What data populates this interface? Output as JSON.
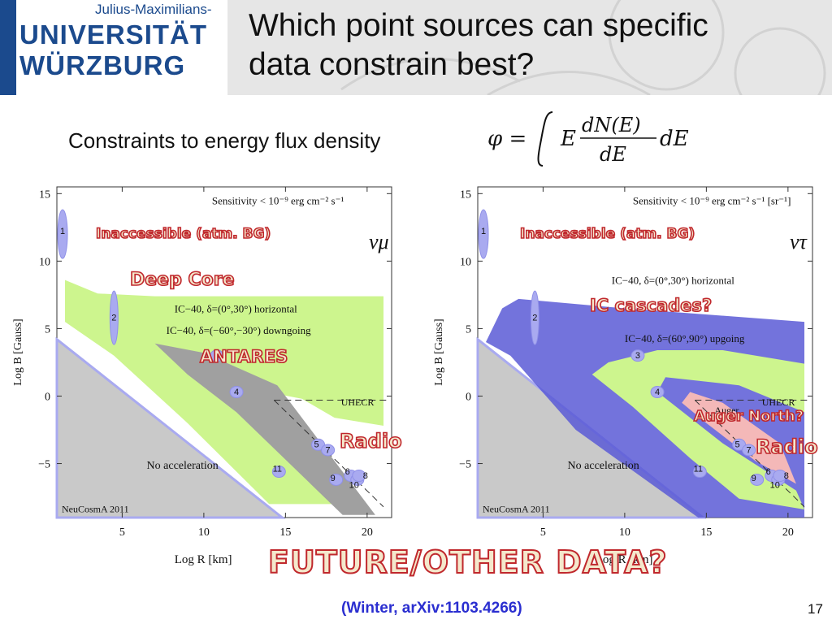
{
  "logo": {
    "line1": "Julius-Maximilians-",
    "line2": "UNIVERSITÄT",
    "line3": "WÜRZBURG"
  },
  "title": {
    "line1": "Which point sources can specific",
    "line2": "data constrain best?"
  },
  "subtitle": "Constraints to energy flux density",
  "formula": {
    "lhs": "φ =",
    "integrand_E": "E",
    "num": "dN(E)",
    "den": "dE",
    "tail": "dE"
  },
  "panels": [
    {
      "flavor": "νμ",
      "sensitivity": "Sensitivity < 10⁻⁹ erg cm⁻² s⁻¹",
      "inaccessible": "Inaccessible (atm. BG)",
      "label_ic_horizontal": "IC−40, δ=(0°,30°) horizontal",
      "label_ic_down": "IC−40, δ=(−60°,−30°) downgoing",
      "deep_core": "Deep Core",
      "antares": "ANTARES",
      "radio": "Radio",
      "uhecr": "UHECR",
      "no_acceleration": "No acceleration",
      "credit": "NeuCosmA 2011",
      "xlabel": "Log R [km]",
      "ylabel": "Log B [Gauss]"
    },
    {
      "flavor": "ντ",
      "sensitivity": "Sensitivity < 10⁻⁹ erg cm⁻² s⁻¹ [sr⁻¹]",
      "inaccessible": "Inaccessible (atm. BG)",
      "label_ic_horizontal": "IC−40, δ=(0°,30°) horizontal",
      "label_ic_up": "IC−40, δ=(60°,90°) upgoing",
      "ic_cascades": "IC cascades?",
      "auger_north": "Auger North?",
      "auger": "Auger",
      "radio": "Radio",
      "uhecr": "UHECR",
      "no_acceleration": "No acceleration",
      "credit": "NeuCosmA 2011",
      "xlabel": "Log R [km]",
      "ylabel": "Log B [Gauss]"
    }
  ],
  "axis": {
    "x_ticks": [
      "5",
      "10",
      "15",
      "20"
    ],
    "y_ticks": [
      "15",
      "10",
      "5",
      "0",
      "−5"
    ],
    "xlim": [
      1,
      21.5
    ],
    "ylim": [
      -9,
      15.5
    ]
  },
  "source_numbers": [
    "1",
    "2",
    "3",
    "4",
    "5",
    "6",
    "7",
    "8",
    "9",
    "10",
    "11"
  ],
  "future": "FUTURE/OTHER DATA?",
  "citation": "(Winter, arXiv:1103.4266)",
  "page_number": "17",
  "colors": {
    "green": "#cdf58e",
    "blue": "#5a5ad6",
    "gray": "#a0a0a0",
    "grayfill": "#c9c9c9",
    "pink": "#f4b8b8",
    "ellipse": "#a9aaf0",
    "red": "#c0282d"
  }
}
